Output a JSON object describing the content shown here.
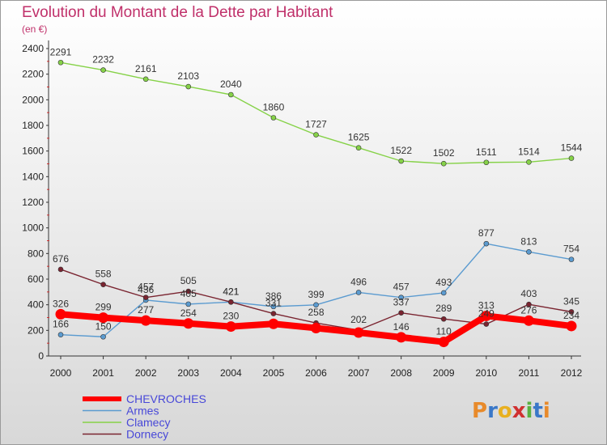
{
  "title": "Evolution du Montant de la Dette par Habitant",
  "subtitle": "(en €)",
  "logo": [
    "P",
    "r",
    "o",
    "x",
    "i",
    "t",
    "i"
  ],
  "chart_data": {
    "type": "line",
    "categories": [
      "2000",
      "2001",
      "2002",
      "2003",
      "2004",
      "2005",
      "2006",
      "2007",
      "2008",
      "2009",
      "2010",
      "2011",
      "2012"
    ],
    "ylim": [
      0,
      2400
    ],
    "yticks": [
      0,
      200,
      400,
      600,
      800,
      1000,
      1200,
      1400,
      1600,
      1800,
      2000,
      2200,
      2400
    ],
    "grid": false,
    "legend_position": "bottom-left",
    "series": [
      {
        "name": "CHEVROCHES",
        "color": "#ff0000",
        "values": [
          326,
          299,
          277,
          254,
          230,
          251,
          218,
          183,
          146,
          110,
          313,
          276,
          234
        ],
        "labels": [
          "326",
          "299",
          "277",
          "254",
          "230",
          "",
          "",
          "",
          "146",
          "110",
          "313",
          "276",
          "234"
        ]
      },
      {
        "name": "Armes",
        "color": "#5b9bd0",
        "values": [
          166,
          150,
          436,
          405,
          421,
          386,
          399,
          496,
          457,
          493,
          877,
          813,
          754
        ],
        "labels": [
          "166",
          "150",
          "436",
          "405",
          "421",
          "386",
          "399",
          "496",
          "457",
          "493",
          "877",
          "813",
          "754"
        ]
      },
      {
        "name": "Clamecy",
        "color": "#86d248",
        "values": [
          2291,
          2232,
          2161,
          2103,
          2040,
          1860,
          1727,
          1625,
          1522,
          1502,
          1511,
          1514,
          1544
        ],
        "labels": [
          "2291",
          "2232",
          "2161",
          "2103",
          "2040",
          "1860",
          "1727",
          "1625",
          "1522",
          "1502",
          "1511",
          "1514",
          "1544"
        ]
      },
      {
        "name": "Dornecy",
        "color": "#7a2430",
        "values": [
          676,
          558,
          457,
          505,
          421,
          331,
          258,
          202,
          337,
          289,
          249,
          403,
          345
        ],
        "labels": [
          "676",
          "558",
          "457",
          "505",
          "421",
          "331",
          "258",
          "202",
          "337",
          "289",
          "249",
          "403",
          "345"
        ]
      }
    ]
  }
}
